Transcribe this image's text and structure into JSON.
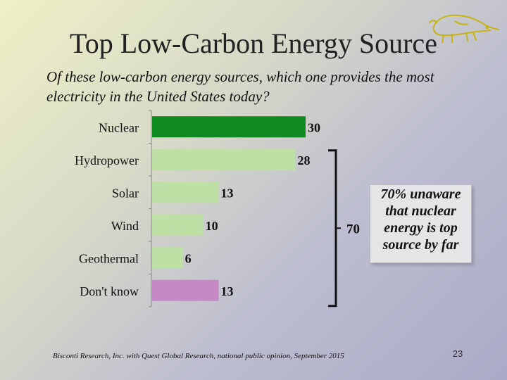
{
  "slide": {
    "title": "Top Low-Carbon Energy Source",
    "subtitle": "Of these low-carbon energy sources, which one provides the most electricity in the United States today?",
    "footer": "Bisconti Research, Inc. with Quest Global Research, national public opinion, September 2015",
    "page_number": "23",
    "callout": "70% unaware that nuclear energy is top source by far",
    "logo_icon": "anteater-logo-icon"
  },
  "chart_data": {
    "type": "bar",
    "orientation": "horizontal",
    "title": "",
    "xlabel": "",
    "ylabel": "",
    "categories": [
      "Nuclear",
      "Hydropower",
      "Solar",
      "Wind",
      "Geothermal",
      "Don't know"
    ],
    "values": [
      30,
      28,
      13,
      10,
      6,
      13
    ],
    "colors": [
      "#0f8a1e",
      "#bfe0a4",
      "#bfe0a4",
      "#bfe0a4",
      "#bfe0a4",
      "#c58ac6"
    ],
    "xlim": [
      0,
      30
    ],
    "grid": false,
    "bracket": {
      "label": "70",
      "spans": [
        "Hydropower",
        "Don't know"
      ]
    }
  }
}
